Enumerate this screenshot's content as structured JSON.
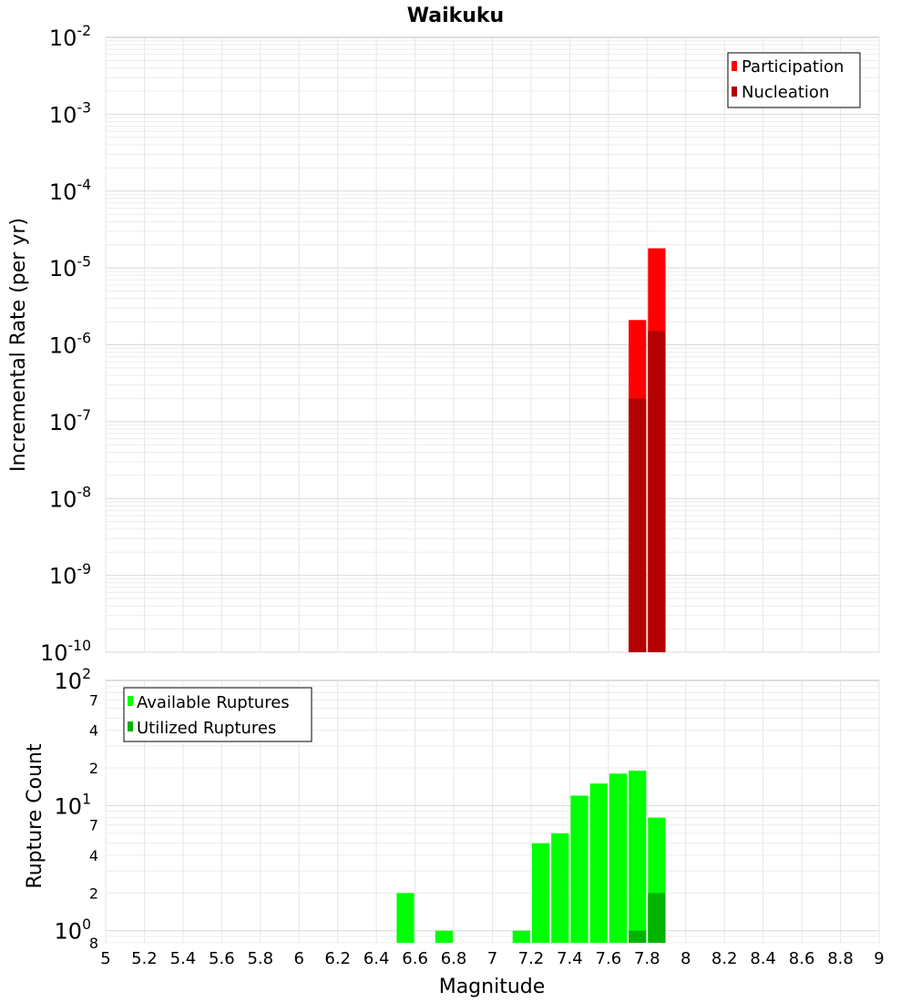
{
  "chart_data": [
    {
      "type": "bar",
      "title": "Waikuku",
      "xlabel": "",
      "ylabel": "Incremental Rate (per yr)",
      "yscale": "log",
      "xlim": [
        5,
        9
      ],
      "ylim": [
        1e-10,
        0.01
      ],
      "y_ticks": [
        {
          "mantissa": "10",
          "exp": "-2"
        },
        {
          "mantissa": "10",
          "exp": "-3"
        },
        {
          "mantissa": "10",
          "exp": "-4"
        },
        {
          "mantissa": "10",
          "exp": "-5"
        },
        {
          "mantissa": "10",
          "exp": "-6"
        },
        {
          "mantissa": "10",
          "exp": "-7"
        },
        {
          "mantissa": "10",
          "exp": "-8"
        },
        {
          "mantissa": "10",
          "exp": "-9"
        },
        {
          "mantissa": "10",
          "exp": "-10"
        }
      ],
      "grid": true,
      "legend_position": "top-right",
      "bar_width": 0.1,
      "series": [
        {
          "name": "Participation",
          "color": "#ff0000",
          "x": [
            7.75,
            7.85
          ],
          "values": [
            2.1e-06,
            1.8e-05
          ]
        },
        {
          "name": "Nucleation",
          "color": "#b30000",
          "x": [
            7.75,
            7.85
          ],
          "values": [
            2e-07,
            1.5e-06
          ]
        }
      ]
    },
    {
      "type": "bar",
      "title": "",
      "xlabel": "Magnitude",
      "ylabel": "Rupture Count",
      "yscale": "log",
      "xlim": [
        5,
        9
      ],
      "ylim": [
        0.8,
        100
      ],
      "y_ticks": [
        {
          "value": 100,
          "mantissa": "10",
          "exp": "2"
        },
        {
          "value": 70,
          "label": "7"
        },
        {
          "value": 40,
          "label": "4"
        },
        {
          "value": 20,
          "label": "2"
        },
        {
          "value": 10,
          "mantissa": "10",
          "exp": "1"
        },
        {
          "value": 7,
          "label": "7"
        },
        {
          "value": 4,
          "label": "4"
        },
        {
          "value": 2,
          "label": "2"
        },
        {
          "value": 1,
          "mantissa": "10",
          "exp": "0"
        },
        {
          "value": 0.8,
          "label": "8"
        }
      ],
      "x_ticks": [
        "5",
        "5.2",
        "5.4",
        "5.6",
        "5.8",
        "6",
        "6.2",
        "6.4",
        "6.6",
        "6.8",
        "7",
        "7.2",
        "7.4",
        "7.6",
        "7.8",
        "8",
        "8.2",
        "8.4",
        "8.6",
        "8.8",
        "9"
      ],
      "grid": true,
      "legend_position": "top-left",
      "bar_width": 0.1,
      "series": [
        {
          "name": "Available Ruptures",
          "color": "#00ff00",
          "x": [
            6.55,
            6.75,
            7.15,
            7.25,
            7.35,
            7.45,
            7.55,
            7.65,
            7.75,
            7.85
          ],
          "values": [
            2,
            1,
            1,
            5,
            6,
            12,
            15,
            18,
            19,
            8
          ]
        },
        {
          "name": "Utilized Ruptures",
          "color": "#00b300",
          "x": [
            7.75,
            7.85
          ],
          "values": [
            1,
            2
          ]
        }
      ]
    }
  ]
}
